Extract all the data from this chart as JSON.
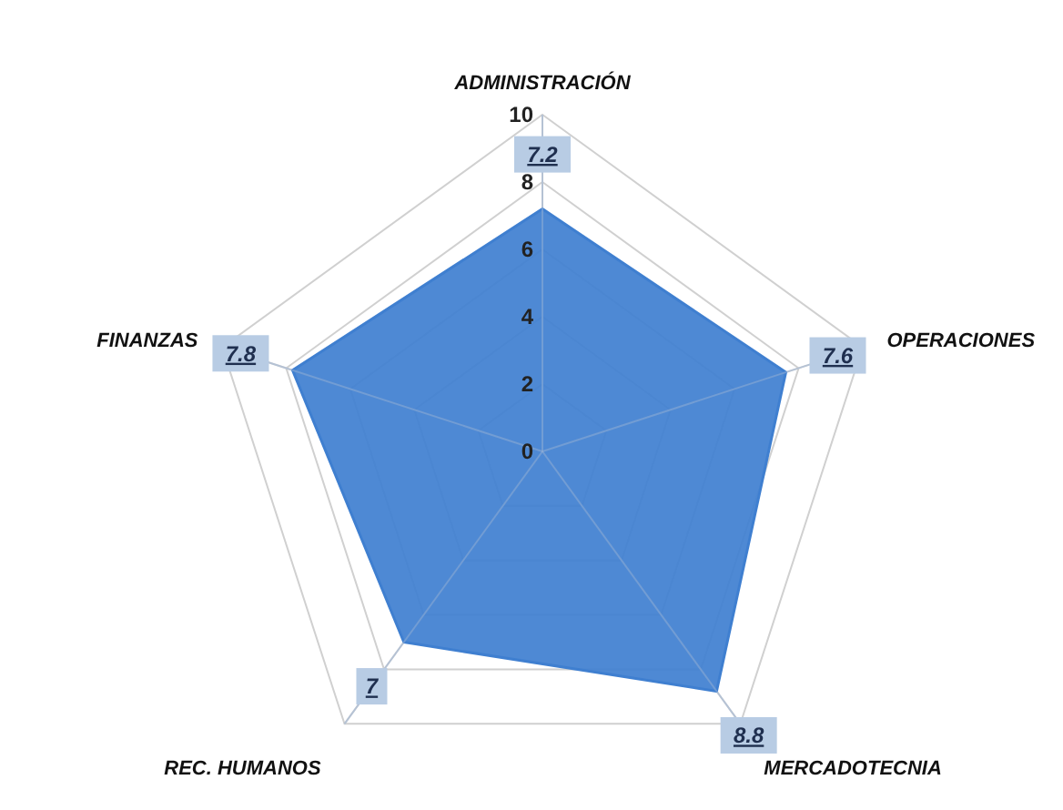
{
  "chart_data": {
    "type": "radar",
    "categories": [
      "ADMINISTRACIÓN",
      "OPERACIONES",
      "MERCADOTECNIA",
      "REC. HUMANOS",
      "FINANZAS"
    ],
    "series": [
      {
        "color": "#3f7fd0",
        "values": [
          7.2,
          7.6,
          8.8,
          7,
          7.8
        ]
      }
    ],
    "ylim": [
      0,
      10
    ],
    "yticks": [
      0,
      2,
      4,
      6,
      8,
      10
    ],
    "grid": true,
    "data_labels": true
  }
}
